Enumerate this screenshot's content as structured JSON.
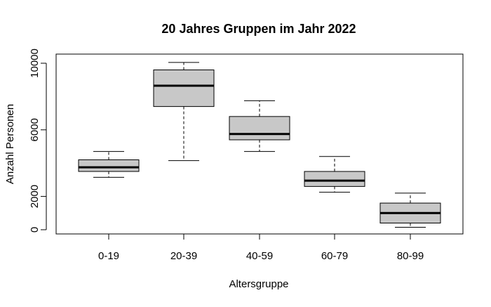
{
  "chart_data": {
    "type": "boxplot",
    "title": "20 Jahres Gruppen im Jahr 2022",
    "xlabel": "Altersgruppe",
    "ylabel": "Anzahl Personen",
    "categories": [
      "0-19",
      "20-39",
      "40-59",
      "60-79",
      "80-99"
    ],
    "ylim": [
      0,
      10400
    ],
    "yticks": [
      0,
      2000,
      6000,
      10000
    ],
    "boxes": [
      {
        "category": "0-19",
        "whisker_low": 3150,
        "q1": 3500,
        "median": 3750,
        "q3": 4200,
        "whisker_high": 4700
      },
      {
        "category": "20-39",
        "whisker_low": 4150,
        "q1": 7400,
        "median": 8650,
        "q3": 9600,
        "whisker_high": 10050
      },
      {
        "category": "40-59",
        "whisker_low": 4700,
        "q1": 5400,
        "median": 5750,
        "q3": 6800,
        "whisker_high": 7750
      },
      {
        "category": "60-79",
        "whisker_low": 2250,
        "q1": 2600,
        "median": 2950,
        "q3": 3500,
        "whisker_high": 4400
      },
      {
        "category": "80-99",
        "whisker_low": 150,
        "q1": 400,
        "median": 1000,
        "q3": 1600,
        "whisker_high": 2200
      }
    ],
    "box_fill": "#c8c8c8",
    "grid": false,
    "legend": "none"
  }
}
